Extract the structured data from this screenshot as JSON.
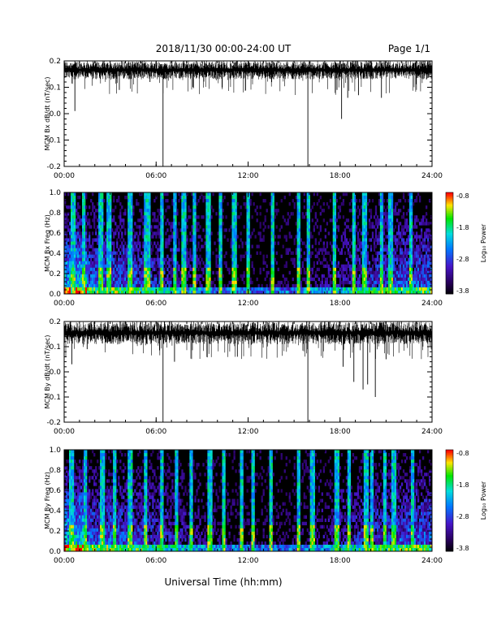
{
  "header": {
    "title": "2018/11/30  00:00-24:00 UT",
    "page": "Page 1/1"
  },
  "footer": {
    "xlabel": "Universal Time (hh:mm)"
  },
  "chart_data": [
    {
      "type": "line",
      "ylabel": "MCM Bx dB/dt (nT/sec)",
      "xlim": [
        0,
        24
      ],
      "ylim": [
        -0.2,
        0.2
      ],
      "x_ticks": [
        "00:00",
        "06:00",
        "12:00",
        "18:00",
        "24:00"
      ],
      "y_ticks": [
        "0.2",
        "0.1",
        "0.0",
        "-0.1",
        "-0.2"
      ],
      "baseline": 0.17,
      "noise_band": [
        0.13,
        0.2
      ],
      "spikes": [
        {
          "t": 0.7,
          "min": 0.01
        },
        {
          "t": 3.6,
          "min": 0.09
        },
        {
          "t": 5.6,
          "min": 0.12
        },
        {
          "t": 6.45,
          "min": -0.2
        },
        {
          "t": 8.4,
          "min": 0.1
        },
        {
          "t": 15.9,
          "min": -0.2
        },
        {
          "t": 17.8,
          "min": 0.09
        },
        {
          "t": 18.1,
          "min": -0.02
        },
        {
          "t": 18.5,
          "min": 0.06
        },
        {
          "t": 19.2,
          "min": 0.07
        },
        {
          "t": 20.7,
          "min": 0.06
        }
      ]
    },
    {
      "type": "heatmap",
      "ylabel": "MCM Bx Freq (Hz)",
      "xlim": [
        0,
        24
      ],
      "ylim": [
        0,
        1
      ],
      "x_ticks": [
        "00:00",
        "06:00",
        "12:00",
        "18:00",
        "24:00"
      ],
      "y_ticks": [
        "1.0",
        "0.8",
        "0.6",
        "0.4",
        "0.2",
        "0.0"
      ],
      "colorbar": {
        "label": "Log₁₀ Power",
        "ticks": [
          "-0.8",
          "-1.8",
          "-2.8",
          "-3.8"
        ],
        "range": [
          -3.8,
          -0.8
        ]
      },
      "bursts": [
        0.6,
        1.3,
        2.4,
        2.9,
        4.25,
        4.3,
        5.3,
        5.5,
        6.4,
        7.2,
        7.8,
        8.5,
        9.4,
        10.2,
        11.1,
        12.0,
        13.6,
        15.3,
        15.9,
        17.6,
        18.9,
        19.6,
        20.7,
        21.3,
        22.6
      ]
    },
    {
      "type": "line",
      "ylabel": "MCM By dB/dt (nT/sec)",
      "xlim": [
        0,
        24
      ],
      "ylim": [
        -0.2,
        0.2
      ],
      "x_ticks": [
        "00:00",
        "06:00",
        "12:00",
        "18:00",
        "24:00"
      ],
      "y_ticks": [
        "0.2",
        "0.1",
        "0.0",
        "-0.1",
        "-0.2"
      ],
      "baseline": 0.16,
      "noise_band": [
        0.11,
        0.2
      ],
      "spikes": [
        {
          "t": 0.5,
          "min": 0.03
        },
        {
          "t": 1.5,
          "min": 0.09
        },
        {
          "t": 6.45,
          "min": -0.2
        },
        {
          "t": 7.2,
          "min": 0.04
        },
        {
          "t": 11.3,
          "min": 0.06
        },
        {
          "t": 15.9,
          "min": -0.2
        },
        {
          "t": 18.2,
          "min": 0.02
        },
        {
          "t": 18.9,
          "min": -0.04
        },
        {
          "t": 19.5,
          "min": -0.07
        },
        {
          "t": 19.8,
          "min": -0.05
        },
        {
          "t": 20.3,
          "min": -0.1
        },
        {
          "t": 21.0,
          "min": 0.05
        }
      ]
    },
    {
      "type": "heatmap",
      "ylabel": "MCM By Freq (Hz)",
      "xlim": [
        0,
        24
      ],
      "ylim": [
        0,
        1
      ],
      "x_ticks": [
        "00:00",
        "06:00",
        "12:00",
        "18:00",
        "24:00"
      ],
      "y_ticks": [
        "1.0",
        "0.8",
        "0.6",
        "0.4",
        "0.2",
        "0.0"
      ],
      "colorbar": {
        "label": "Log₁₀ Power",
        "ticks": [
          "-0.8",
          "-1.8",
          "-2.8",
          "-3.8"
        ],
        "range": [
          -3.8,
          -0.8
        ]
      },
      "bursts": [
        0.5,
        1.4,
        2.5,
        3.3,
        4.25,
        4.3,
        5.3,
        6.4,
        7.3,
        8.3,
        9.5,
        10.4,
        11.6,
        12.3,
        13.5,
        15.3,
        16.2,
        17.8,
        18.6,
        19.7,
        20.1,
        20.9,
        21.5,
        22.7
      ]
    }
  ]
}
